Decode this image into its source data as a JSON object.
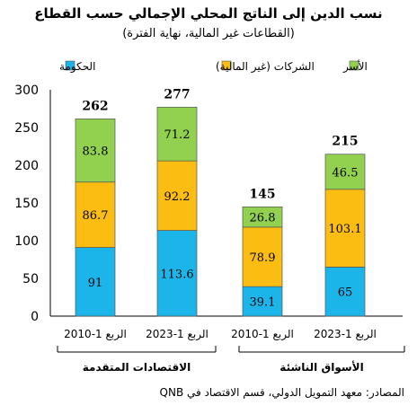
{
  "title": "نسب الدين إلى الناتج المحلي الإجمالي حسب القطاع",
  "subtitle": "(القطاعات غير المالية، نهاية الفترة)",
  "source": "المصادر: معهد التمويل الدولي، قسم الاقتصاد في QNB",
  "colors": {
    "government": "#1cb5ea",
    "corporates": "#fbbd12",
    "households": "#92d050",
    "border": "#555555"
  },
  "chart_data": {
    "type": "bar",
    "stacked": true,
    "ylim": [
      0,
      300
    ],
    "yticks": [
      0,
      50,
      100,
      150,
      200,
      250,
      300
    ],
    "legend_position": "top",
    "groups": [
      "الاقتصادات المتقدمة",
      "الأسواق الناشئة"
    ],
    "categories": [
      "الربع 1-2010",
      "الربع 1-2023",
      "الربع 1-2010",
      "الربع 1-2023"
    ],
    "category_group": [
      0,
      0,
      1,
      1
    ],
    "series": [
      {
        "name": "الحكومة",
        "color_key": "government",
        "values": [
          91,
          113.6,
          39.1,
          65
        ]
      },
      {
        "name": "الشركات (غير المالية)",
        "color_key": "corporates",
        "values": [
          86.7,
          92.2,
          78.9,
          103.1
        ]
      },
      {
        "name": "الأسر",
        "color_key": "households",
        "values": [
          83.8,
          71.2,
          26.8,
          46.5
        ]
      }
    ],
    "totals": [
      262,
      277,
      145,
      215
    ]
  }
}
